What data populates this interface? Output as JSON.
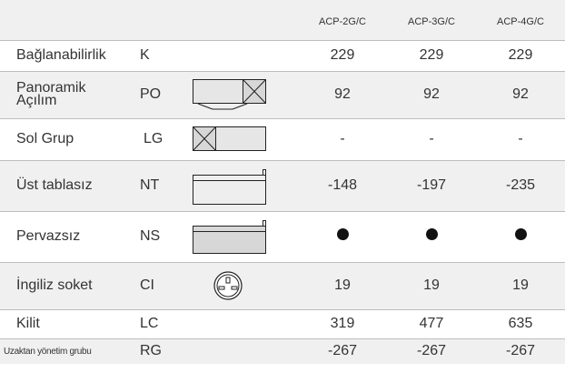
{
  "header": {
    "col1": "ACP-2G/C",
    "col2": "ACP-3G/C",
    "col3": "ACP-4G/C"
  },
  "rows": [
    {
      "name": "Bağlanabilirlik",
      "code": "K",
      "figure": "none",
      "values": [
        "229",
        "229",
        "229"
      ]
    },
    {
      "name_line1": "Panoramik",
      "name_line2": "Açılım",
      "code": "PO",
      "figure": "panoramic-opening",
      "values": [
        "92",
        "92",
        "92"
      ]
    },
    {
      "name": "Sol Grup",
      "code": "LG",
      "figure": "left-group",
      "values": [
        "-",
        "-",
        "-"
      ]
    },
    {
      "name": "Üst tablasız",
      "code": "NT",
      "figure": "no-top",
      "values": [
        "-148",
        "-197",
        "-235"
      ]
    },
    {
      "name": "Pervazsız",
      "code": "NS",
      "figure": "no-skirting",
      "values": [
        "dot",
        "dot",
        "dot"
      ]
    },
    {
      "name": "İngiliz soket",
      "code": "CI",
      "figure": "uk-socket",
      "values": [
        "19",
        "19",
        "19"
      ]
    },
    {
      "name": "Kilit",
      "code": "LC",
      "figure": "none",
      "values": [
        "319",
        "477",
        "635"
      ]
    },
    {
      "name": "Uzaktan yönetim grubu",
      "code": "RG",
      "figure": "none",
      "values": [
        "-267",
        "-267",
        "-267"
      ]
    }
  ]
}
